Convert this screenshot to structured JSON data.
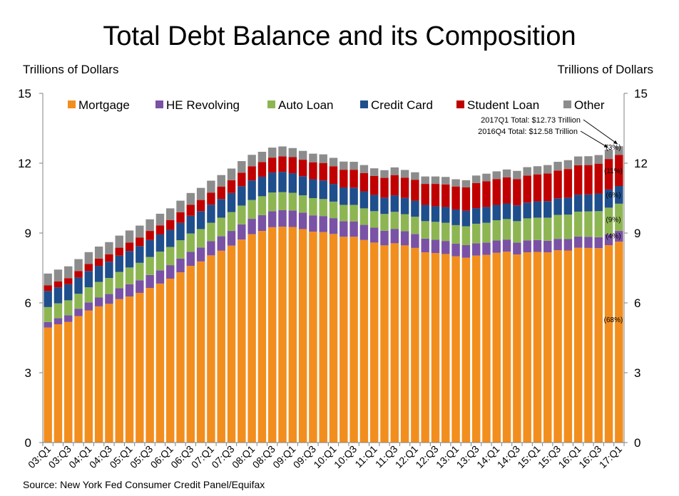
{
  "title": "Total Debt Balance and its Composition",
  "unit_left": "Trillions of Dollars",
  "unit_right": "Trillions of Dollars",
  "source": "Source: New York Fed Consumer Credit Panel/Equifax",
  "chart_data": {
    "type": "bar",
    "stacked": true,
    "title": "Total Debt Balance and its Composition",
    "ylabel": "Trillions of Dollars",
    "ylim": [
      0,
      15
    ],
    "yticks": [
      0,
      3,
      6,
      9,
      12,
      15
    ],
    "legend_position": "top",
    "categories": [
      "03:Q1",
      "03:Q2",
      "03:Q3",
      "03:Q4",
      "04:Q1",
      "04:Q2",
      "04:Q3",
      "04:Q4",
      "05:Q1",
      "05:Q2",
      "05:Q3",
      "05:Q4",
      "06:Q1",
      "06:Q2",
      "06:Q3",
      "06:Q4",
      "07:Q1",
      "07:Q2",
      "07:Q3",
      "07:Q4",
      "08:Q1",
      "08:Q2",
      "08:Q3",
      "08:Q4",
      "09:Q1",
      "09:Q2",
      "09:Q3",
      "09:Q4",
      "10:Q1",
      "10:Q2",
      "10:Q3",
      "10:Q4",
      "11:Q1",
      "11:Q2",
      "11:Q3",
      "11:Q4",
      "12:Q1",
      "12:Q2",
      "12:Q3",
      "12:Q4",
      "13:Q1",
      "13:Q2",
      "13:Q3",
      "13:Q4",
      "14:Q1",
      "14:Q2",
      "14:Q3",
      "14:Q4",
      "15:Q1",
      "15:Q2",
      "15:Q3",
      "15:Q4",
      "16:Q1",
      "16:Q2",
      "16:Q3",
      "16:Q4",
      "17:Q1"
    ],
    "x_tick_labels": [
      "03:Q1",
      "03:Q3",
      "04:Q1",
      "04:Q3",
      "05:Q1",
      "05:Q3",
      "06:Q1",
      "06:Q3",
      "07:Q1",
      "07:Q3",
      "08:Q1",
      "08:Q3",
      "09:Q1",
      "09:Q3",
      "10:Q1",
      "10:Q3",
      "11:Q1",
      "11:Q3",
      "12:Q1",
      "12:Q3",
      "13:Q1",
      "13:Q3",
      "14:Q1",
      "14:Q3",
      "15:Q1",
      "15:Q3",
      "16:Q1",
      "16:Q3",
      "17:Q1"
    ],
    "series": [
      {
        "name": "Mortgage",
        "color": "#F28E1E",
        "share_label": "(68%)",
        "values": [
          4.94,
          5.08,
          5.18,
          5.43,
          5.67,
          5.85,
          5.96,
          6.16,
          6.27,
          6.43,
          6.64,
          6.83,
          7.04,
          7.31,
          7.59,
          7.78,
          8.04,
          8.24,
          8.46,
          8.72,
          8.95,
          9.09,
          9.25,
          9.27,
          9.26,
          9.17,
          9.06,
          9.04,
          8.96,
          8.84,
          8.84,
          8.7,
          8.59,
          8.47,
          8.56,
          8.47,
          8.36,
          8.17,
          8.14,
          8.1,
          8.0,
          7.94,
          8.03,
          8.06,
          8.15,
          8.2,
          8.08,
          8.17,
          8.19,
          8.17,
          8.26,
          8.25,
          8.37,
          8.36,
          8.35,
          8.48,
          8.63
        ]
      },
      {
        "name": "HE Revolving",
        "color": "#7A52A5",
        "share_label": "(4%)",
        "values": [
          0.24,
          0.26,
          0.29,
          0.32,
          0.35,
          0.38,
          0.42,
          0.47,
          0.53,
          0.54,
          0.56,
          0.57,
          0.58,
          0.59,
          0.6,
          0.6,
          0.61,
          0.62,
          0.63,
          0.65,
          0.66,
          0.68,
          0.69,
          0.71,
          0.71,
          0.71,
          0.7,
          0.69,
          0.68,
          0.67,
          0.66,
          0.65,
          0.64,
          0.63,
          0.62,
          0.61,
          0.6,
          0.59,
          0.57,
          0.56,
          0.54,
          0.54,
          0.53,
          0.53,
          0.53,
          0.52,
          0.51,
          0.51,
          0.51,
          0.5,
          0.49,
          0.49,
          0.48,
          0.48,
          0.47,
          0.47,
          0.46
        ]
      },
      {
        "name": "Auto Loan",
        "color": "#8DB653",
        "share_label": "(9%)",
        "values": [
          0.64,
          0.64,
          0.64,
          0.64,
          0.65,
          0.67,
          0.69,
          0.7,
          0.72,
          0.75,
          0.77,
          0.8,
          0.78,
          0.79,
          0.79,
          0.79,
          0.79,
          0.8,
          0.81,
          0.81,
          0.81,
          0.81,
          0.8,
          0.78,
          0.76,
          0.74,
          0.74,
          0.73,
          0.71,
          0.7,
          0.71,
          0.71,
          0.71,
          0.72,
          0.73,
          0.73,
          0.74,
          0.75,
          0.77,
          0.78,
          0.8,
          0.81,
          0.84,
          0.85,
          0.87,
          0.88,
          0.92,
          0.95,
          0.96,
          0.99,
          1.03,
          1.05,
          1.07,
          1.09,
          1.12,
          1.14,
          1.17
        ]
      },
      {
        "name": "Credit Card",
        "color": "#1F4E8C",
        "share_label": "(6%)",
        "values": [
          0.69,
          0.69,
          0.69,
          0.7,
          0.7,
          0.69,
          0.7,
          0.7,
          0.71,
          0.72,
          0.73,
          0.74,
          0.74,
          0.75,
          0.76,
          0.77,
          0.78,
          0.8,
          0.82,
          0.83,
          0.84,
          0.84,
          0.86,
          0.87,
          0.84,
          0.82,
          0.81,
          0.8,
          0.76,
          0.75,
          0.74,
          0.73,
          0.7,
          0.7,
          0.71,
          0.7,
          0.69,
          0.7,
          0.67,
          0.68,
          0.67,
          0.67,
          0.67,
          0.68,
          0.66,
          0.67,
          0.68,
          0.68,
          0.7,
          0.71,
          0.71,
          0.73,
          0.73,
          0.73,
          0.76,
          0.78,
          0.76
        ]
      },
      {
        "name": "Student Loan",
        "color": "#C00000",
        "share_label": "(11%)",
        "values": [
          0.24,
          0.25,
          0.26,
          0.28,
          0.3,
          0.31,
          0.32,
          0.34,
          0.36,
          0.37,
          0.39,
          0.39,
          0.42,
          0.45,
          0.47,
          0.48,
          0.51,
          0.53,
          0.55,
          0.58,
          0.61,
          0.63,
          0.64,
          0.66,
          0.69,
          0.71,
          0.73,
          0.75,
          0.76,
          0.76,
          0.77,
          0.79,
          0.81,
          0.85,
          0.87,
          0.87,
          0.9,
          0.9,
          0.96,
          0.97,
          0.99,
          1.0,
          1.08,
          1.1,
          1.11,
          1.12,
          1.13,
          1.16,
          1.16,
          1.19,
          1.19,
          1.23,
          1.26,
          1.26,
          1.28,
          1.31,
          1.34
        ]
      },
      {
        "name": "Other",
        "color": "#8C8C8C",
        "share_label": "(3%)",
        "values": [
          0.51,
          0.51,
          0.51,
          0.51,
          0.51,
          0.52,
          0.52,
          0.52,
          0.52,
          0.51,
          0.5,
          0.5,
          0.5,
          0.5,
          0.51,
          0.52,
          0.52,
          0.5,
          0.5,
          0.5,
          0.49,
          0.44,
          0.43,
          0.43,
          0.39,
          0.38,
          0.37,
          0.37,
          0.36,
          0.35,
          0.34,
          0.34,
          0.33,
          0.33,
          0.33,
          0.33,
          0.32,
          0.32,
          0.32,
          0.32,
          0.31,
          0.31,
          0.32,
          0.33,
          0.33,
          0.34,
          0.35,
          0.36,
          0.35,
          0.36,
          0.38,
          0.38,
          0.38,
          0.38,
          0.37,
          0.4,
          0.37
        ]
      }
    ],
    "annotations": [
      {
        "text": "2017Q1 Total: $12.73 Trillion",
        "category": "17:Q1"
      },
      {
        "text": "2016Q4 Total: $12.58 Trillion",
        "category": "16:Q4"
      }
    ]
  }
}
